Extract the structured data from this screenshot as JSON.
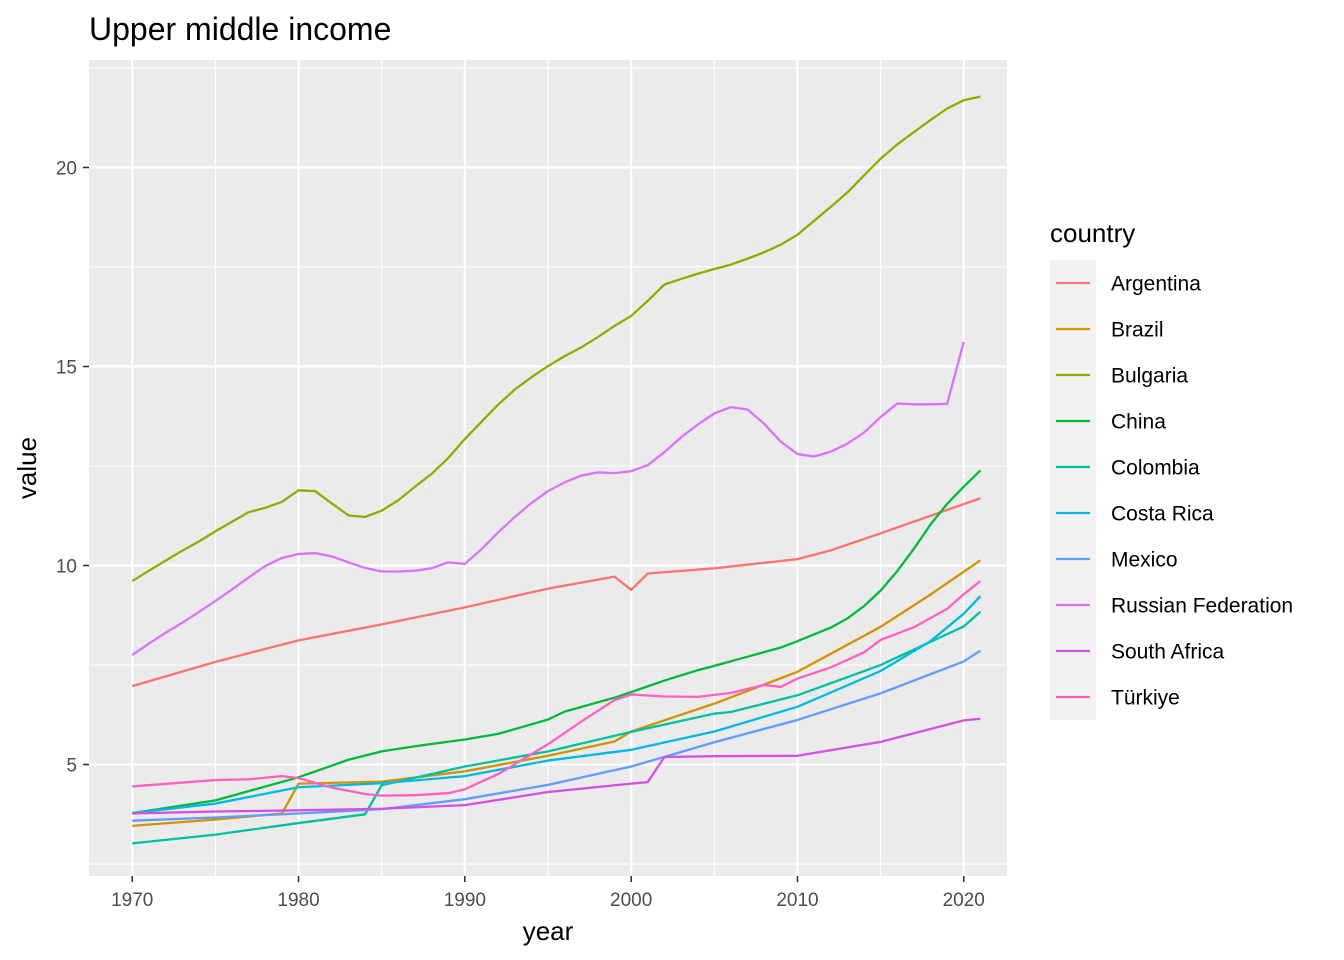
{
  "chart_data": {
    "type": "line",
    "title": "Upper middle income",
    "xlabel": "year",
    "ylabel": "value",
    "xlim": [
      1967.4,
      2022.6
    ],
    "ylim": [
      2.2,
      22.7
    ],
    "x_ticks": [
      1970,
      1980,
      1990,
      2000,
      2010,
      2020
    ],
    "x_tick_labels": [
      "1970",
      "1980",
      "1990",
      "2000",
      "2010",
      "2020"
    ],
    "y_ticks": [
      5,
      10,
      15,
      20
    ],
    "y_tick_labels": [
      "5",
      "10",
      "15",
      "20"
    ],
    "grid": true,
    "legend": {
      "title": "country",
      "placement": "right"
    },
    "series": [
      {
        "name": "Argentina",
        "color": "#F8766D",
        "x": [
          1970,
          1975,
          1980,
          1985,
          1990,
          1995,
          1999,
          2000,
          2001,
          2005,
          2010,
          2012,
          2015,
          2018,
          2021
        ],
        "values": [
          6.97,
          7.58,
          8.12,
          8.52,
          8.95,
          9.42,
          9.72,
          9.39,
          9.8,
          9.93,
          10.16,
          10.38,
          10.81,
          11.25,
          11.69
        ]
      },
      {
        "name": "Brazil",
        "color": "#D39200",
        "x": [
          1970,
          1975,
          1979,
          1980,
          1985,
          1990,
          1995,
          1999,
          2000,
          2005,
          2010,
          2015,
          2018,
          2021
        ],
        "values": [
          3.46,
          3.62,
          3.77,
          4.52,
          4.57,
          4.83,
          5.22,
          5.58,
          5.83,
          6.53,
          7.33,
          8.46,
          9.27,
          10.13
        ]
      },
      {
        "name": "Bulgaria",
        "color": "#93AA00",
        "x": [
          1970,
          1971,
          1972,
          1973,
          1974,
          1975,
          1976,
          1977,
          1978,
          1979,
          1980,
          1981,
          1982,
          1983,
          1984,
          1985,
          1986,
          1987,
          1988,
          1989,
          1990,
          1991,
          1992,
          1993,
          1994,
          1995,
          1996,
          1997,
          1998,
          1999,
          2000,
          2001,
          2002,
          2003,
          2004,
          2005,
          2006,
          2007,
          2008,
          2009,
          2010,
          2011,
          2012,
          2013,
          2014,
          2015,
          2016,
          2017,
          2018,
          2019,
          2020,
          2021
        ],
        "values": [
          9.61,
          9.87,
          10.12,
          10.37,
          10.6,
          10.86,
          11.1,
          11.34,
          11.45,
          11.6,
          11.89,
          11.87,
          11.56,
          11.26,
          11.22,
          11.38,
          11.64,
          11.98,
          12.3,
          12.7,
          13.18,
          13.61,
          14.04,
          14.42,
          14.73,
          15.01,
          15.26,
          15.48,
          15.74,
          16.02,
          16.27,
          16.65,
          17.06,
          17.2,
          17.33,
          17.45,
          17.56,
          17.71,
          17.87,
          18.06,
          18.31,
          18.66,
          19.01,
          19.37,
          19.8,
          20.22,
          20.58,
          20.89,
          21.19,
          21.48,
          21.69,
          21.78
        ]
      },
      {
        "name": "China",
        "color": "#00BA38",
        "x": [
          1970,
          1975,
          1980,
          1983,
          1985,
          1987,
          1990,
          1992,
          1995,
          1996,
          1999,
          2000,
          2002,
          2004,
          2005,
          2007,
          2009,
          2010,
          2012,
          2013,
          2014,
          2015,
          2016,
          2017,
          2018,
          2019,
          2020,
          2021
        ],
        "values": [
          3.78,
          4.1,
          4.68,
          5.12,
          5.33,
          5.46,
          5.63,
          5.77,
          6.13,
          6.33,
          6.68,
          6.82,
          7.11,
          7.37,
          7.48,
          7.71,
          7.94,
          8.1,
          8.44,
          8.67,
          8.98,
          9.37,
          9.86,
          10.42,
          11.03,
          11.55,
          11.98,
          12.39
        ]
      },
      {
        "name": "Colombia",
        "color": "#00C19F",
        "x": [
          1970,
          1975,
          1980,
          1984,
          1985,
          1990,
          1995,
          2000,
          2005,
          2006,
          2010,
          2015,
          2020,
          2021
        ],
        "values": [
          3.02,
          3.24,
          3.53,
          3.75,
          4.48,
          4.95,
          5.33,
          5.82,
          6.28,
          6.32,
          6.74,
          7.5,
          8.47,
          8.84
        ]
      },
      {
        "name": "Costa Rica",
        "color": "#00B9E3",
        "x": [
          1970,
          1975,
          1980,
          1985,
          1990,
          1995,
          2000,
          2005,
          2010,
          2015,
          2018,
          2020,
          2021
        ],
        "values": [
          3.78,
          4.02,
          4.43,
          4.53,
          4.71,
          5.1,
          5.37,
          5.83,
          6.45,
          7.35,
          8.1,
          8.79,
          9.23
        ]
      },
      {
        "name": "Mexico",
        "color": "#619CFF",
        "x": [
          1970,
          1975,
          1980,
          1985,
          1990,
          1995,
          2000,
          2005,
          2010,
          2015,
          2020,
          2021
        ],
        "values": [
          3.59,
          3.67,
          3.77,
          3.88,
          4.13,
          4.49,
          4.95,
          5.56,
          6.12,
          6.79,
          7.59,
          7.86
        ]
      },
      {
        "name": "Russian Federation",
        "color": "#DB72FB",
        "x": [
          1970,
          1971,
          1972,
          1973,
          1974,
          1975,
          1976,
          1977,
          1978,
          1979,
          1980,
          1981,
          1982,
          1983,
          1984,
          1985,
          1986,
          1987,
          1988,
          1989,
          1990,
          1991,
          1992,
          1993,
          1994,
          1995,
          1996,
          1997,
          1998,
          1999,
          2000,
          2001,
          2002,
          2003,
          2004,
          2005,
          2006,
          2007,
          2008,
          2009,
          2010,
          2011,
          2012,
          2013,
          2014,
          2015,
          2016,
          2017,
          2018,
          2019,
          2020
        ],
        "values": [
          7.75,
          8.04,
          8.31,
          8.56,
          8.83,
          9.11,
          9.4,
          9.7,
          9.99,
          10.19,
          10.29,
          10.31,
          10.23,
          10.08,
          9.94,
          9.85,
          9.85,
          9.87,
          9.93,
          10.08,
          10.04,
          10.41,
          10.83,
          11.22,
          11.57,
          11.87,
          12.09,
          12.26,
          12.34,
          12.32,
          12.37,
          12.52,
          12.85,
          13.22,
          13.54,
          13.82,
          13.98,
          13.92,
          13.56,
          13.11,
          12.8,
          12.74,
          12.86,
          13.06,
          13.34,
          13.73,
          14.07,
          14.05,
          14.05,
          14.06,
          15.62
        ]
      },
      {
        "name": "South Africa",
        "color": "#D64FE0",
        "x": [
          1970,
          1975,
          1980,
          1985,
          1990,
          1995,
          2000,
          2001,
          2002,
          2005,
          2010,
          2015,
          2020,
          2021
        ],
        "values": [
          3.77,
          3.82,
          3.85,
          3.89,
          3.98,
          4.31,
          4.52,
          4.56,
          5.19,
          5.21,
          5.22,
          5.57,
          6.11,
          6.15
        ]
      },
      {
        "name": "Türkiye",
        "color": "#FF61C3",
        "x": [
          1970,
          1975,
          1977,
          1979,
          1980,
          1982,
          1984,
          1985,
          1987,
          1989,
          1990,
          1992,
          1995,
          1997,
          1999,
          2000,
          2002,
          2004,
          2006,
          2008,
          2009,
          2010,
          2012,
          2014,
          2015,
          2017,
          2019,
          2020,
          2021
        ],
        "values": [
          4.45,
          4.61,
          4.63,
          4.71,
          4.66,
          4.42,
          4.26,
          4.22,
          4.23,
          4.28,
          4.38,
          4.76,
          5.51,
          6.08,
          6.62,
          6.76,
          6.71,
          6.7,
          6.8,
          7.0,
          6.95,
          7.16,
          7.44,
          7.82,
          8.13,
          8.45,
          8.91,
          9.28,
          9.61
        ]
      }
    ]
  }
}
